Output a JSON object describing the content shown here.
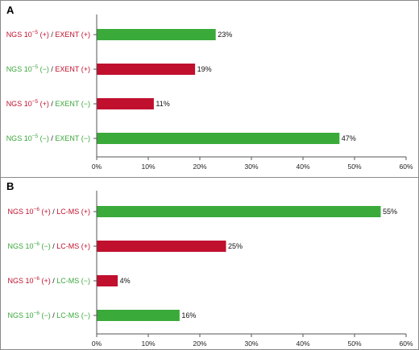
{
  "colors": {
    "positive_label": "#c0102e",
    "negative_label": "#3aa63a",
    "green_bar": "#3aaa3a",
    "red_bar": "#c0102e",
    "axis": "#555555"
  },
  "chart_data": [
    {
      "type": "bar",
      "orientation": "horizontal",
      "panel_label": "A",
      "title": "",
      "xlabel": "",
      "ylabel": "",
      "xlim": [
        0,
        60
      ],
      "xticks": [
        "0%",
        "10%",
        "20%",
        "30%",
        "40%",
        "50%",
        "60%"
      ],
      "grid": false,
      "categories": [
        {
          "parts": [
            {
              "text": "NGS 10",
              "sup": "−5",
              "after": " (+)",
              "status": "positive"
            },
            {
              "text": " / ",
              "status": "neutral"
            },
            {
              "text": "EXENT (+)",
              "status": "positive"
            }
          ],
          "value": 23,
          "value_label": "23%",
          "bar_color": "green"
        },
        {
          "parts": [
            {
              "text": "NGS 10",
              "sup": "−5",
              "after": " (−)",
              "status": "negative"
            },
            {
              "text": " / ",
              "status": "neutral"
            },
            {
              "text": "EXENT (+)",
              "status": "positive"
            }
          ],
          "value": 19,
          "value_label": "19%",
          "bar_color": "red"
        },
        {
          "parts": [
            {
              "text": "NGS 10",
              "sup": "−5",
              "after": " (+)",
              "status": "positive"
            },
            {
              "text": " / ",
              "status": "neutral"
            },
            {
              "text": "EXENT (−)",
              "status": "negative"
            }
          ],
          "value": 11,
          "value_label": "11%",
          "bar_color": "red"
        },
        {
          "parts": [
            {
              "text": "NGS 10",
              "sup": "−5",
              "after": " (−)",
              "status": "negative"
            },
            {
              "text": " / ",
              "status": "neutral"
            },
            {
              "text": "EXENT (−)",
              "status": "negative"
            }
          ],
          "value": 47,
          "value_label": "47%",
          "bar_color": "green"
        }
      ]
    },
    {
      "type": "bar",
      "orientation": "horizontal",
      "panel_label": "B",
      "title": "",
      "xlabel": "",
      "ylabel": "",
      "xlim": [
        0,
        60
      ],
      "xticks": [
        "0%",
        "10%",
        "20%",
        "30%",
        "40%",
        "50%",
        "60%"
      ],
      "grid": false,
      "categories": [
        {
          "parts": [
            {
              "text": "NGS 10",
              "sup": "−6",
              "after": " (+)",
              "status": "positive"
            },
            {
              "text": " / ",
              "status": "neutral"
            },
            {
              "text": "LC-MS (+)",
              "status": "positive"
            }
          ],
          "value": 55,
          "value_label": "55%",
          "bar_color": "green"
        },
        {
          "parts": [
            {
              "text": "NGS 10",
              "sup": "−6",
              "after": " (−)",
              "status": "negative"
            },
            {
              "text": " / ",
              "status": "neutral"
            },
            {
              "text": "LC-MS (+)",
              "status": "positive"
            }
          ],
          "value": 25,
          "value_label": "25%",
          "bar_color": "red"
        },
        {
          "parts": [
            {
              "text": "NGS 10",
              "sup": "−6",
              "after": " (+)",
              "status": "positive"
            },
            {
              "text": " / ",
              "status": "neutral"
            },
            {
              "text": "LC-MS (−)",
              "status": "negative"
            }
          ],
          "value": 4,
          "value_label": "4%",
          "bar_color": "red"
        },
        {
          "parts": [
            {
              "text": "NGS 10",
              "sup": "−6",
              "after": " (−)",
              "status": "negative"
            },
            {
              "text": " / ",
              "status": "neutral"
            },
            {
              "text": "LC-MS (−)",
              "status": "negative"
            }
          ],
          "value": 16,
          "value_label": "16%",
          "bar_color": "green"
        }
      ]
    }
  ]
}
